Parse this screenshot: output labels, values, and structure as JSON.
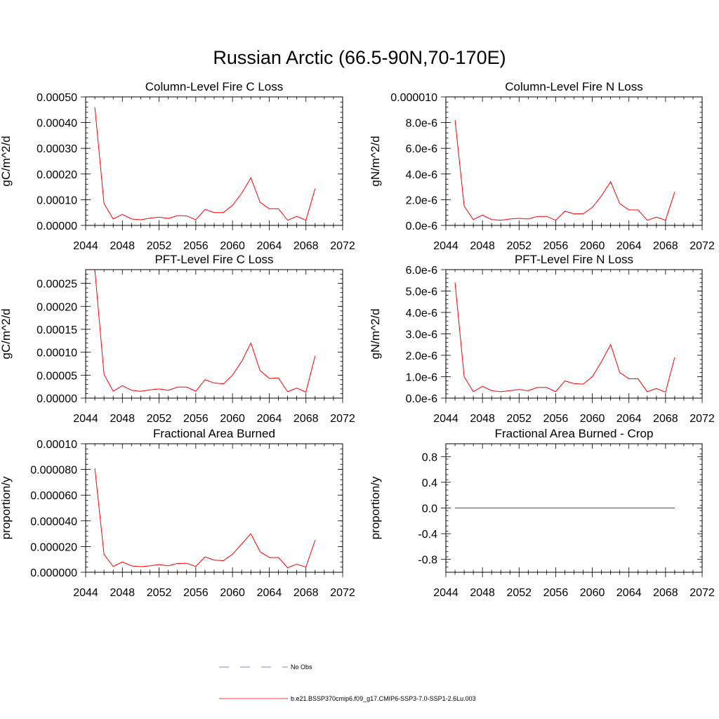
{
  "figure": {
    "title": "Russian Arctic (66.5-90N,70-170E)"
  },
  "legend": [
    {
      "label": "No Obs",
      "color": "#5a5ad6",
      "style": "dashed"
    },
    {
      "label": "b.e21.BSSP370cmip6.f09_g17.CMIP6-SSP3-7.0-SSP1-2.6Lu.003",
      "color": "#ff0000",
      "style": "solid"
    }
  ],
  "chart_data": [
    {
      "type": "line",
      "title": "Column-Level Fire C Loss",
      "ylabel": "gC/m^2/d",
      "xlim": [
        2044,
        2072
      ],
      "ylim": [
        0,
        0.0005
      ],
      "grid": false,
      "x_ticks": [
        "2044",
        "2048",
        "2052",
        "2056",
        "2060",
        "2064",
        "2068",
        "2072"
      ],
      "y_ticks": [
        {
          "v": 0,
          "t": "0.00000"
        },
        {
          "v": 0.0001,
          "t": "0.00010"
        },
        {
          "v": 0.0002,
          "t": "0.00020"
        },
        {
          "v": 0.0003,
          "t": "0.00030"
        },
        {
          "v": 0.0004,
          "t": "0.00040"
        },
        {
          "v": 0.0005,
          "t": "0.00050"
        }
      ],
      "series": [
        {
          "color": "#ff0000",
          "x": [
            2045,
            2046,
            2047,
            2048,
            2049,
            2050,
            2051,
            2052,
            2053,
            2054,
            2055,
            2056,
            2057,
            2058,
            2059,
            2060,
            2061,
            2062,
            2063,
            2064,
            2065,
            2066,
            2067,
            2068,
            2069
          ],
          "y": [
            0.00046,
            8.5e-05,
            2.5e-05,
            4.3e-05,
            2.5e-05,
            2.2e-05,
            2.8e-05,
            3.2e-05,
            2.7e-05,
            3.8e-05,
            3.7e-05,
            2.2e-05,
            6.2e-05,
            5e-05,
            5e-05,
            7.8e-05,
            0.000125,
            0.000185,
            9e-05,
            6.5e-05,
            6.5e-05,
            2e-05,
            3.5e-05,
            2e-05,
            0.000143
          ]
        }
      ]
    },
    {
      "type": "line",
      "title": "Column-Level Fire N Loss",
      "ylabel": "gN/m^2/d",
      "xlim": [
        2044,
        2072
      ],
      "ylim": [
        0,
        1e-05
      ],
      "grid": false,
      "x_ticks": [
        "2044",
        "2048",
        "2052",
        "2056",
        "2060",
        "2064",
        "2068",
        "2072"
      ],
      "y_ticks": [
        {
          "v": 0,
          "t": "0.0e-6"
        },
        {
          "v": 2e-06,
          "t": "2.0e-6"
        },
        {
          "v": 4e-06,
          "t": "4.0e-6"
        },
        {
          "v": 6e-06,
          "t": "6.0e-6"
        },
        {
          "v": 8e-06,
          "t": "8.0e-6"
        },
        {
          "v": 1e-05,
          "t": "0.000010"
        }
      ],
      "series": [
        {
          "color": "#ff0000",
          "x": [
            2045,
            2046,
            2047,
            2048,
            2049,
            2050,
            2051,
            2052,
            2053,
            2054,
            2055,
            2056,
            2057,
            2058,
            2059,
            2060,
            2061,
            2062,
            2063,
            2064,
            2065,
            2066,
            2067,
            2068,
            2069
          ],
          "y": [
            8.2e-06,
            1.5e-06,
            4.5e-07,
            8e-07,
            4.5e-07,
            4e-07,
            5e-07,
            5.5e-07,
            5e-07,
            7e-07,
            7e-07,
            4e-07,
            1.1e-06,
            9e-07,
            9e-07,
            1.4e-06,
            2.3e-06,
            3.4e-06,
            1.7e-06,
            1.2e-06,
            1.2e-06,
            4e-07,
            6.5e-07,
            4e-07,
            2.6e-06
          ]
        }
      ]
    },
    {
      "type": "line",
      "title": "PFT-Level Fire C Loss",
      "ylabel": "gC/m^2/d",
      "xlim": [
        2044,
        2072
      ],
      "ylim": [
        0,
        0.00028
      ],
      "grid": false,
      "x_ticks": [
        "2044",
        "2048",
        "2052",
        "2056",
        "2060",
        "2064",
        "2068",
        "2072"
      ],
      "y_ticks": [
        {
          "v": 0,
          "t": "0.00000"
        },
        {
          "v": 5e-05,
          "t": "0.00005"
        },
        {
          "v": 0.0001,
          "t": "0.00010"
        },
        {
          "v": 0.00015,
          "t": "0.00015"
        },
        {
          "v": 0.0002,
          "t": "0.00020"
        },
        {
          "v": 0.00025,
          "t": "0.00025"
        }
      ],
      "series": [
        {
          "color": "#ff0000",
          "x": [
            2045,
            2046,
            2047,
            2048,
            2049,
            2050,
            2051,
            2052,
            2053,
            2054,
            2055,
            2056,
            2057,
            2058,
            2059,
            2060,
            2061,
            2062,
            2063,
            2064,
            2065,
            2066,
            2067,
            2068,
            2069
          ],
          "y": [
            0.00028,
            5.2e-05,
            1.5e-05,
            2.7e-05,
            1.7e-05,
            1.5e-05,
            1.8e-05,
            2e-05,
            1.7e-05,
            2.4e-05,
            2.4e-05,
            1.5e-05,
            4e-05,
            3.3e-05,
            3.1e-05,
            5e-05,
            8e-05,
            0.00012,
            6e-05,
            4.3e-05,
            4.4e-05,
            1.4e-05,
            2.2e-05,
            1.3e-05,
            9.2e-05
          ]
        }
      ]
    },
    {
      "type": "line",
      "title": "PFT-Level Fire N Loss",
      "ylabel": "gN/m^2/d",
      "xlim": [
        2044,
        2072
      ],
      "ylim": [
        0,
        6e-06
      ],
      "grid": false,
      "x_ticks": [
        "2044",
        "2048",
        "2052",
        "2056",
        "2060",
        "2064",
        "2068",
        "2072"
      ],
      "y_ticks": [
        {
          "v": 0,
          "t": "0.0e-6"
        },
        {
          "v": 1e-06,
          "t": "1.0e-6"
        },
        {
          "v": 2e-06,
          "t": "2.0e-6"
        },
        {
          "v": 3e-06,
          "t": "3.0e-6"
        },
        {
          "v": 4e-06,
          "t": "4.0e-6"
        },
        {
          "v": 5e-06,
          "t": "5.0e-6"
        },
        {
          "v": 6e-06,
          "t": "6.0e-6"
        }
      ],
      "series": [
        {
          "color": "#ff0000",
          "x": [
            2045,
            2046,
            2047,
            2048,
            2049,
            2050,
            2051,
            2052,
            2053,
            2054,
            2055,
            2056,
            2057,
            2058,
            2059,
            2060,
            2061,
            2062,
            2063,
            2064,
            2065,
            2066,
            2067,
            2068,
            2069
          ],
          "y": [
            5.4e-06,
            1e-06,
            3e-07,
            5.5e-07,
            3.5e-07,
            3e-07,
            3.5e-07,
            4e-07,
            3.5e-07,
            5e-07,
            5e-07,
            3e-07,
            8e-07,
            6.8e-07,
            6.5e-07,
            1e-06,
            1.7e-06,
            2.5e-06,
            1.2e-06,
            9e-07,
            9e-07,
            3e-07,
            4.5e-07,
            2.8e-07,
            1.9e-06
          ]
        }
      ]
    },
    {
      "type": "line",
      "title": "Fractional Area Burned",
      "ylabel": "proportion/y",
      "xlim": [
        2044,
        2072
      ],
      "ylim": [
        0,
        0.0001
      ],
      "grid": false,
      "x_ticks": [
        "2044",
        "2048",
        "2052",
        "2056",
        "2060",
        "2064",
        "2068",
        "2072"
      ],
      "y_ticks": [
        {
          "v": 0,
          "t": "0.000000"
        },
        {
          "v": 2e-05,
          "t": "0.000020"
        },
        {
          "v": 4e-05,
          "t": "0.000040"
        },
        {
          "v": 6e-05,
          "t": "0.000060"
        },
        {
          "v": 8e-05,
          "t": "0.000080"
        },
        {
          "v": 0.0001,
          "t": "0.00010"
        }
      ],
      "series": [
        {
          "color": "#ff0000",
          "x": [
            2045,
            2046,
            2047,
            2048,
            2049,
            2050,
            2051,
            2052,
            2053,
            2054,
            2055,
            2056,
            2057,
            2058,
            2059,
            2060,
            2061,
            2062,
            2063,
            2064,
            2065,
            2066,
            2067,
            2068,
            2069
          ],
          "y": [
            8.1e-05,
            1.4e-05,
            4.5e-06,
            8e-06,
            5e-06,
            4.3e-06,
            5e-06,
            6e-06,
            5e-06,
            6.8e-06,
            7e-06,
            4.5e-06,
            1.2e-05,
            9.5e-06,
            9e-06,
            1.4e-05,
            2.2e-05,
            3e-05,
            1.6e-05,
            1.15e-05,
            1.15e-05,
            3.5e-06,
            6.3e-06,
            4e-06,
            2.5e-05
          ]
        }
      ]
    },
    {
      "type": "line",
      "title": "Fractional Area Burned - Crop",
      "ylabel": "proportion/y",
      "xlim": [
        2044,
        2072
      ],
      "ylim": [
        -1,
        1
      ],
      "grid": false,
      "x_ticks": [
        "2044",
        "2048",
        "2052",
        "2056",
        "2060",
        "2064",
        "2068",
        "2072"
      ],
      "y_ticks": [
        {
          "v": -0.8,
          "t": "-0.8"
        },
        {
          "v": -0.4,
          "t": "-0.4"
        },
        {
          "v": 0,
          "t": "0.0"
        },
        {
          "v": 0.4,
          "t": "0.4"
        },
        {
          "v": 0.8,
          "t": "0.8"
        }
      ],
      "series": [
        {
          "color": "#ff0000",
          "x": [
            2045,
            2046,
            2047,
            2048,
            2049,
            2050,
            2051,
            2052,
            2053,
            2054,
            2055,
            2056,
            2057,
            2058,
            2059,
            2060,
            2061,
            2062,
            2063,
            2064,
            2065,
            2066,
            2067,
            2068,
            2069
          ],
          "y": [
            0,
            0,
            0,
            0,
            0,
            0,
            0,
            0,
            0,
            0,
            0,
            0,
            0,
            0,
            0,
            0,
            0,
            0,
            0,
            0,
            0,
            0,
            0,
            0,
            0
          ]
        }
      ]
    }
  ]
}
